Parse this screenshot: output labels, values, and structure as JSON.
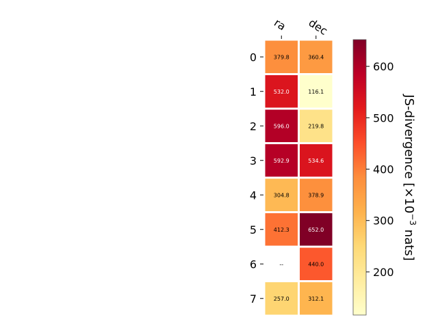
{
  "chart_data": {
    "type": "heatmap",
    "title": "",
    "columns": [
      "ra",
      "dec"
    ],
    "rows": [
      "0",
      "1",
      "2",
      "3",
      "4",
      "5",
      "6",
      "7"
    ],
    "values": [
      [
        379.8,
        360.4
      ],
      [
        532.0,
        116.1
      ],
      [
        596.0,
        219.8
      ],
      [
        592.9,
        534.6
      ],
      [
        304.8,
        378.9
      ],
      [
        412.3,
        652.0
      ],
      [
        null,
        440.0
      ],
      [
        257.0,
        312.1
      ]
    ],
    "cell_labels": [
      [
        "379.8",
        "360.4"
      ],
      [
        "532.0",
        "116.1"
      ],
      [
        "596.0",
        "219.8"
      ],
      [
        "592.9",
        "534.6"
      ],
      [
        "304.8",
        "378.9"
      ],
      [
        "412.3",
        "652.0"
      ],
      [
        "--",
        "440.0"
      ],
      [
        "257.0",
        "312.1"
      ]
    ],
    "colorbar": {
      "label_prefix": "JS-divergence [×10",
      "label_exp": "−3",
      "label_suffix": " nats]",
      "vmin": 116.1,
      "vmax": 652.0,
      "ticks": [
        200,
        300,
        400,
        500,
        600
      ],
      "tick_labels": [
        "200",
        "300",
        "400",
        "500",
        "600"
      ],
      "colormap": "YlOrRd"
    }
  }
}
